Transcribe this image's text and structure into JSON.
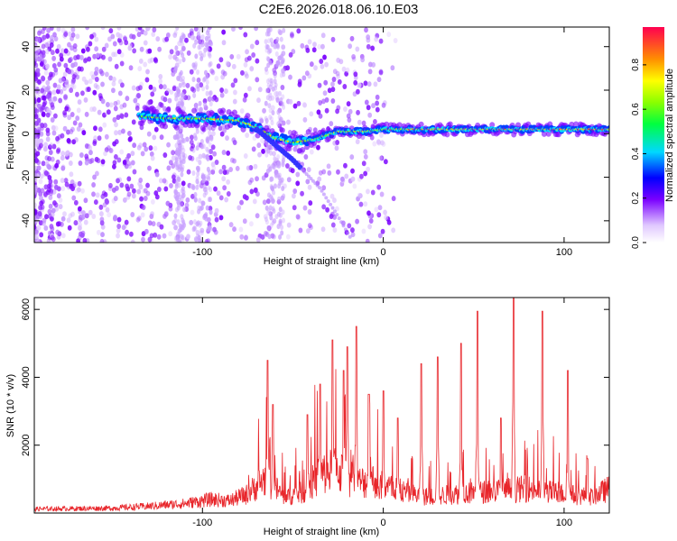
{
  "title": "C2E6.2026.018.06.10.E03",
  "colors": {
    "snr_line": "#e8252a",
    "axis": "#000000"
  },
  "chart_data": [
    {
      "type": "heatmap",
      "xlabel": "Height of straight line (km)",
      "ylabel": "Frequency (Hz)",
      "xlim": [
        -193,
        125
      ],
      "ylim": [
        -50,
        49
      ],
      "x_ticks": [
        -100,
        0,
        100
      ],
      "y_ticks": [
        -40,
        -20,
        0,
        20,
        40
      ],
      "colorbar": {
        "label": "Normalized spectral amplitude",
        "range": [
          0,
          0.97
        ],
        "ticks": [
          0.0,
          0.2,
          0.4,
          0.6,
          0.8
        ],
        "tick_labels": [
          "0.0",
          "0.2",
          "0.4",
          "0.6",
          "0.8"
        ]
      },
      "main_track": [
        {
          "x": -135,
          "y": 8
        },
        {
          "x": -120,
          "y": 7
        },
        {
          "x": -100,
          "y": 7
        },
        {
          "x": -80,
          "y": 6
        },
        {
          "x": -70,
          "y": 3
        },
        {
          "x": -60,
          "y": -2
        },
        {
          "x": -50,
          "y": -4
        },
        {
          "x": -40,
          "y": -3
        },
        {
          "x": -25,
          "y": 1
        },
        {
          "x": -10,
          "y": 1
        },
        {
          "x": 0,
          "y": 2
        },
        {
          "x": 20,
          "y": 2
        },
        {
          "x": 60,
          "y": 2
        },
        {
          "x": 100,
          "y": 2
        },
        {
          "x": 125,
          "y": 2
        }
      ],
      "diagonal_branch": [
        {
          "x": -70,
          "y": 2
        },
        {
          "x": -50,
          "y": -12
        },
        {
          "x": -35,
          "y": -25
        },
        {
          "x": -25,
          "y": -38
        },
        {
          "x": -18,
          "y": -48
        }
      ]
    },
    {
      "type": "line",
      "xlabel": "Height of straight line (km)",
      "ylabel": "SNR (10 * v/v)",
      "xlim": [
        -193,
        125
      ],
      "ylim": [
        0,
        6350
      ],
      "x_ticks": [
        -100,
        0,
        100
      ],
      "y_ticks": [
        2000,
        4000,
        6000
      ],
      "baseline_envelope": [
        {
          "x": -193,
          "y": 150
        },
        {
          "x": -150,
          "y": 180
        },
        {
          "x": -130,
          "y": 250
        },
        {
          "x": -110,
          "y": 350
        },
        {
          "x": -95,
          "y": 500
        },
        {
          "x": -85,
          "y": 450
        },
        {
          "x": -75,
          "y": 700
        },
        {
          "x": -65,
          "y": 1300
        },
        {
          "x": -55,
          "y": 600
        },
        {
          "x": -45,
          "y": 750
        },
        {
          "x": -35,
          "y": 1400
        },
        {
          "x": -25,
          "y": 1600
        },
        {
          "x": -15,
          "y": 1100
        },
        {
          "x": -5,
          "y": 1200
        },
        {
          "x": 5,
          "y": 900
        },
        {
          "x": 15,
          "y": 700
        },
        {
          "x": 25,
          "y": 600
        },
        {
          "x": 40,
          "y": 700
        },
        {
          "x": 60,
          "y": 800
        },
        {
          "x": 80,
          "y": 900
        },
        {
          "x": 100,
          "y": 700
        },
        {
          "x": 115,
          "y": 600
        },
        {
          "x": 125,
          "y": 900
        }
      ],
      "peaks": [
        {
          "x": -64,
          "y": 4500
        },
        {
          "x": -61,
          "y": 3200
        },
        {
          "x": -42,
          "y": 2900
        },
        {
          "x": -35,
          "y": 3800
        },
        {
          "x": -28,
          "y": 5100
        },
        {
          "x": -22,
          "y": 4200
        },
        {
          "x": -20,
          "y": 4900
        },
        {
          "x": -15,
          "y": 5500
        },
        {
          "x": -8,
          "y": 3500
        },
        {
          "x": 0,
          "y": 3600
        },
        {
          "x": 8,
          "y": 2800
        },
        {
          "x": 21,
          "y": 4400
        },
        {
          "x": 30,
          "y": 4600
        },
        {
          "x": 43,
          "y": 5000
        },
        {
          "x": 52,
          "y": 5950
        },
        {
          "x": 65,
          "y": 2800
        },
        {
          "x": 72,
          "y": 6350
        },
        {
          "x": 88,
          "y": 5950
        },
        {
          "x": 102,
          "y": 4200
        },
        {
          "x": 113,
          "y": 1600
        }
      ]
    }
  ]
}
